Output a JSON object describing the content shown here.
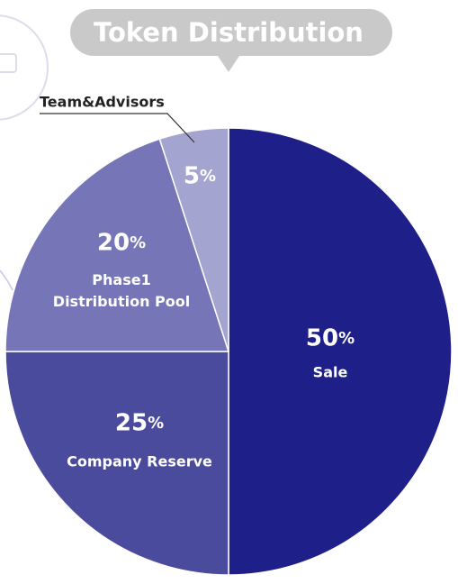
{
  "chart_data": {
    "type": "pie",
    "title": "Token Distribution",
    "categories": [
      "Sale",
      "Company Reserve",
      "Phase1 Distribution Pool",
      "Team&Advisors"
    ],
    "values": [
      50,
      25,
      20,
      5
    ],
    "value_labels": [
      "50%",
      "25%",
      "20%",
      "5%"
    ],
    "colors": [
      "#1f1f8a",
      "#4b4b9e",
      "#7575b7",
      "#a4a4d0"
    ]
  }
}
